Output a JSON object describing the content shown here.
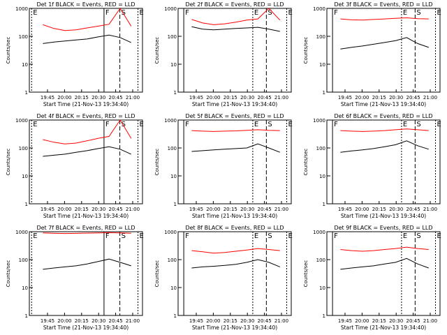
{
  "chart_data": [
    {
      "type": "line",
      "title": "Det 1f BLACK = Events, RED = LLD",
      "xlabel": "Start Time (21-Nov-13 19:34:40)",
      "ylabel": "Counts/sec",
      "xticks": [
        "19:45",
        "20:00",
        "20:15",
        "20:30",
        "20:45",
        "21:00"
      ],
      "yticks": [
        "1",
        "10",
        "100",
        "1000"
      ],
      "ylim": [
        1,
        1000
      ],
      "y_scale": "log",
      "markers": [
        "E",
        "F",
        "S",
        "E"
      ],
      "series": [
        {
          "color": "#000000",
          "values": [
            55,
            62,
            68,
            74,
            80,
            95,
            110,
            90,
            60
          ]
        },
        {
          "color": "#ff0000",
          "values": [
            260,
            190,
            160,
            170,
            200,
            230,
            270,
            1000,
            230
          ]
        }
      ]
    },
    {
      "type": "line",
      "title": "Det 2f BLACK = Events, RED = LLD",
      "xlabel": "Start Time (21-Nov-13 19:34:40)",
      "ylabel": "Counts/sec",
      "xticks": [
        "19:45",
        "20:00",
        "20:15",
        "20:30",
        "20:45",
        "21:00"
      ],
      "yticks": [
        "1",
        "10",
        "100",
        "1000"
      ],
      "ylim": [
        1,
        1000
      ],
      "y_scale": "log",
      "markers": [
        "F",
        "E",
        "S",
        "E"
      ],
      "series": [
        {
          "color": "#000000",
          "values": [
            220,
            180,
            170,
            180,
            190,
            200,
            210,
            180,
            150
          ]
        },
        {
          "color": "#ff0000",
          "values": [
            400,
            300,
            260,
            280,
            320,
            380,
            420,
            1000,
            380
          ]
        }
      ]
    },
    {
      "type": "line",
      "title": "Det 3f BLACK = Events, RED = LLD",
      "xlabel": "Start Time (21-Nov-13 19:34:40)",
      "ylabel": "Counts/sec",
      "xticks": [
        "19:45",
        "20:00",
        "20:15",
        "20:30",
        "20:45",
        "21:00"
      ],
      "yticks": [
        "1",
        "10",
        "100",
        "1000"
      ],
      "ylim": [
        1,
        1000
      ],
      "y_scale": "log",
      "markers": [
        "F",
        "E",
        "S",
        "E"
      ],
      "series": [
        {
          "color": "#000000",
          "values": [
            35,
            40,
            45,
            52,
            60,
            70,
            90,
            55,
            40
          ]
        },
        {
          "color": "#ff0000",
          "values": [
            420,
            390,
            380,
            400,
            420,
            440,
            460,
            430,
            420
          ]
        }
      ]
    },
    {
      "type": "line",
      "title": "Det 4f BLACK = Events, RED = LLD",
      "xlabel": "Start Time (21-Nov-13 19:34:40)",
      "ylabel": "Counts/sec",
      "xticks": [
        "19:45",
        "20:00",
        "20:15",
        "20:30",
        "20:45",
        "21:00"
      ],
      "yticks": [
        "1",
        "10",
        "100",
        "1000"
      ],
      "ylim": [
        1,
        1000
      ],
      "y_scale": "log",
      "markers": [
        "E",
        "F",
        "S",
        "E"
      ],
      "series": [
        {
          "color": "#000000",
          "values": [
            50,
            55,
            60,
            70,
            80,
            95,
            110,
            90,
            60
          ]
        },
        {
          "color": "#ff0000",
          "values": [
            200,
            160,
            140,
            150,
            180,
            220,
            260,
            1000,
            220
          ]
        }
      ]
    },
    {
      "type": "line",
      "title": "Det 5f BLACK = Events, RED = LLD",
      "xlabel": "Start Time (21-Nov-13 19:34:40)",
      "ylabel": "Counts/sec",
      "xticks": [
        "19:45",
        "20:00",
        "20:15",
        "20:30",
        "20:45",
        "21:00"
      ],
      "yticks": [
        "1",
        "10",
        "100",
        "1000"
      ],
      "ylim": [
        1,
        1000
      ],
      "y_scale": "log",
      "markers": [
        "F",
        "E",
        "S",
        "E"
      ],
      "series": [
        {
          "color": "#000000",
          "values": [
            75,
            80,
            85,
            90,
            95,
            100,
            140,
            100,
            70
          ]
        },
        {
          "color": "#ff0000",
          "values": [
            420,
            400,
            390,
            400,
            410,
            430,
            450,
            430,
            420
          ]
        }
      ]
    },
    {
      "type": "line",
      "title": "Det 6f BLACK = Events, RED = LLD",
      "xlabel": "Start Time (21-Nov-13 19:34:40)",
      "ylabel": "Counts/sec",
      "xticks": [
        "19:45",
        "20:00",
        "20:15",
        "20:30",
        "20:45",
        "21:00"
      ],
      "yticks": [
        "1",
        "10",
        "100",
        "1000"
      ],
      "ylim": [
        1,
        1000
      ],
      "y_scale": "log",
      "markers": [
        "F",
        "E",
        "S",
        "E"
      ],
      "series": [
        {
          "color": "#000000",
          "values": [
            70,
            78,
            85,
            95,
            110,
            130,
            180,
            120,
            90
          ]
        },
        {
          "color": "#ff0000",
          "values": [
            420,
            400,
            390,
            400,
            420,
            450,
            480,
            450,
            420
          ]
        }
      ]
    },
    {
      "type": "line",
      "title": "Det 7f BLACK = Events, RED = LLD",
      "xlabel": "Start Time (21-Nov-13 19:34:40)",
      "ylabel": "Counts/sec",
      "xticks": [
        "19:45",
        "20:00",
        "20:15",
        "20:30",
        "20:45",
        "21:00"
      ],
      "yticks": [
        "1",
        "10",
        "100",
        "1000"
      ],
      "ylim": [
        1,
        1000
      ],
      "y_scale": "log",
      "markers": [
        "E",
        "F",
        "S",
        "E"
      ],
      "series": [
        {
          "color": "#000000",
          "values": [
            45,
            50,
            55,
            60,
            70,
            85,
            105,
            80,
            60
          ]
        },
        {
          "color": "#ff0000",
          "values": [
            900,
            880,
            860,
            870,
            890,
            900,
            920,
            900,
            880
          ]
        }
      ]
    },
    {
      "type": "line",
      "title": "Det 8f BLACK = Events, RED = LLD",
      "xlabel": "Start Time (21-Nov-13 19:34:40)",
      "ylabel": "Counts/sec",
      "xticks": [
        "19:45",
        "20:00",
        "20:15",
        "20:30",
        "20:45",
        "21:00"
      ],
      "yticks": [
        "1",
        "10",
        "100",
        "1000"
      ],
      "ylim": [
        1,
        1000
      ],
      "y_scale": "log",
      "markers": [
        "F",
        "E",
        "S",
        "E"
      ],
      "series": [
        {
          "color": "#000000",
          "values": [
            50,
            55,
            58,
            62,
            68,
            80,
            100,
            80,
            55
          ]
        },
        {
          "color": "#ff0000",
          "values": [
            210,
            190,
            170,
            180,
            200,
            220,
            250,
            230,
            210
          ]
        }
      ]
    },
    {
      "type": "line",
      "title": "Det 9f BLACK = Events, RED = LLD",
      "xlabel": "Start Time (21-Nov-13 19:34:40)",
      "ylabel": "Counts/sec",
      "xticks": [
        "19:45",
        "20:00",
        "20:15",
        "20:30",
        "20:45",
        "21:00"
      ],
      "yticks": [
        "1",
        "10",
        "100",
        "1000"
      ],
      "ylim": [
        1,
        1000
      ],
      "y_scale": "log",
      "markers": [
        "F",
        "E",
        "S",
        "E"
      ],
      "series": [
        {
          "color": "#000000",
          "values": [
            45,
            50,
            55,
            60,
            70,
            80,
            110,
            70,
            50
          ]
        },
        {
          "color": "#ff0000",
          "values": [
            230,
            210,
            200,
            210,
            230,
            250,
            280,
            250,
            230
          ]
        }
      ]
    }
  ]
}
